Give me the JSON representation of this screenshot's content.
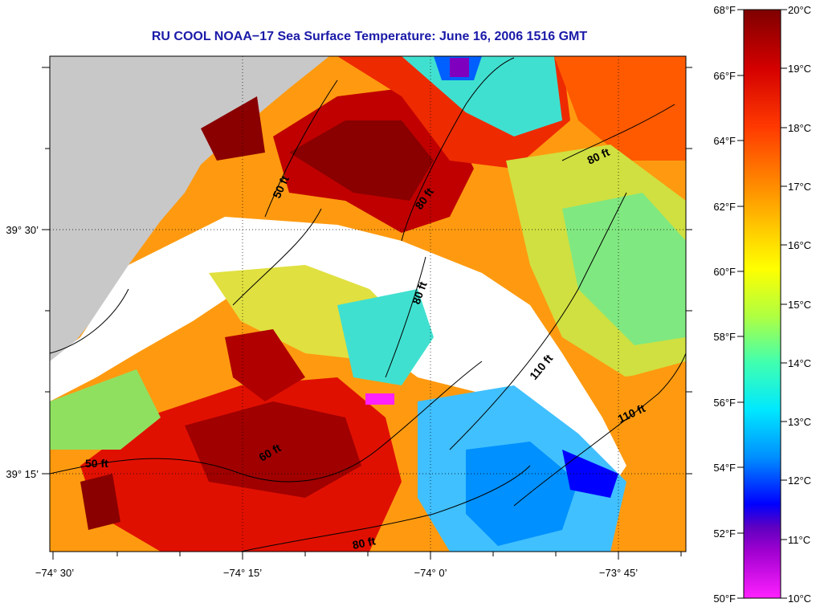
{
  "title": "RU COOL  NOAA−17  Sea Surface Temperature:  June 16, 2006 1516 GMT",
  "axes": {
    "longitude_ticks": [
      "−74° 30’",
      "−74° 15’",
      "−74° 0’",
      "−73° 45’"
    ],
    "latitude_ticks": [
      "39° 30’",
      "39° 15’"
    ]
  },
  "colorbar": {
    "fahrenheit_labels": [
      "68°F",
      "66°F",
      "64°F",
      "62°F",
      "60°F",
      "58°F",
      "56°F",
      "54°F",
      "52°F",
      "50°F"
    ],
    "celsius_labels": [
      "20°C",
      "19°C",
      "18°C",
      "17°C",
      "16°C",
      "15°C",
      "14°C",
      "13°C",
      "12°C",
      "11°C",
      "10°C"
    ],
    "colors": [
      "#7f0000",
      "#cc0000",
      "#ff3300",
      "#ff8000",
      "#ffc000",
      "#ffff00",
      "#c0ff40",
      "#40ffc0",
      "#00e0ff",
      "#0080ff",
      "#0000ff",
      "#8000c0",
      "#ff00ff"
    ]
  },
  "depth_labels": [
    "50 ft",
    "80 ft",
    "80 ft",
    "80 ft",
    "110 ft",
    "110 ft",
    "50 ft",
    "60 ft",
    "80 ft"
  ],
  "colors": {
    "land": "#c8c8c8",
    "no_data": "#ffffff",
    "title": "#1a1aa8"
  }
}
